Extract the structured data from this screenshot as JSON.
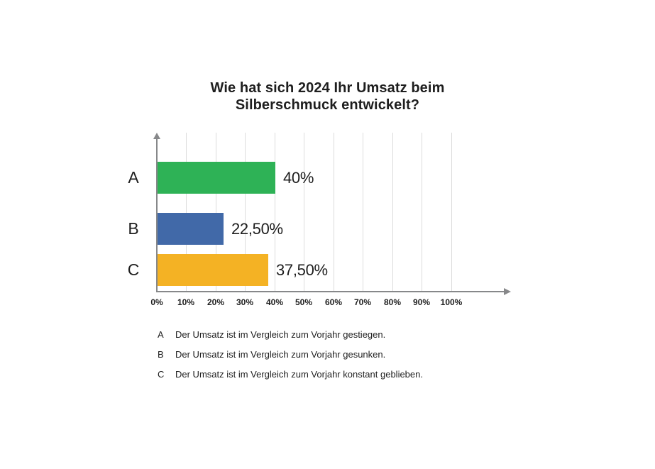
{
  "title": {
    "lines": [
      "Wie hat sich 2024 Ihr Umsatz beim",
      "Silberschmuck entwickelt?"
    ]
  },
  "chart_data": {
    "type": "bar",
    "orientation": "horizontal",
    "title": "Wie hat sich 2024 Ihr Umsatz beim Silberschmuck entwickelt?",
    "categories": [
      "A",
      "B",
      "C"
    ],
    "values": [
      40,
      22.5,
      37.5
    ],
    "value_labels": [
      "40%",
      "22,50%",
      "37,50%"
    ],
    "bar_colors": [
      "#2eb256",
      "#4169a8",
      "#f4b224"
    ],
    "x_ticks": [
      "0%",
      "10%",
      "20%",
      "30%",
      "40%",
      "50%",
      "60%",
      "70%",
      "80%",
      "90%",
      "100%"
    ],
    "xlim": [
      0,
      100
    ],
    "grid": true,
    "legend_position": "below-chart",
    "legend": [
      {
        "letter": "A",
        "text": "Der Umsatz ist im Vergleich zum Vorjahr gestiegen."
      },
      {
        "letter": "B",
        "text": "Der Umsatz ist im Vergleich zum Vorjahr gesunken."
      },
      {
        "letter": "C",
        "text": "Der Umsatz ist im Vergleich zum Vorjahr konstant geblieben."
      }
    ]
  },
  "colors": {
    "background": "#ffffff",
    "text": "#1e1e1e",
    "axis": "#87888a",
    "gridline": "#dcdcdc"
  }
}
